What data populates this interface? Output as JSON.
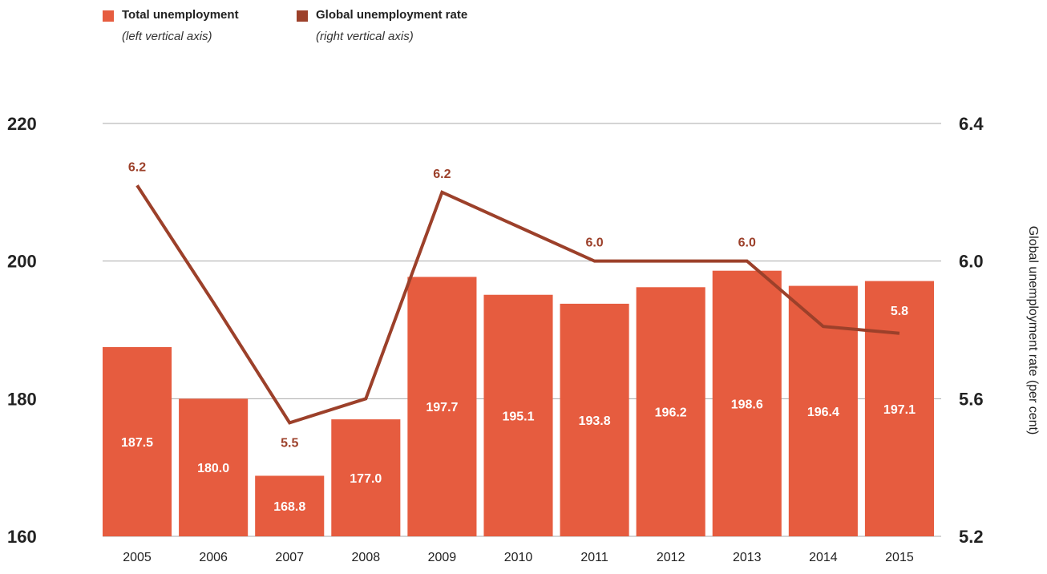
{
  "colors": {
    "bar": "#E65C3F",
    "line": "#9C402A",
    "grid": "#AAAAAA",
    "text": "#222222"
  },
  "legend": {
    "items": [
      {
        "name": "Total unemployment",
        "note": "(left vertical axis)"
      },
      {
        "name": "Global unemployment rate",
        "note": "(right vertical axis)"
      }
    ]
  },
  "chart_data": {
    "type": "bar",
    "categories": [
      "2005",
      "2006",
      "2007",
      "2008",
      "2009",
      "2010",
      "2011",
      "2012",
      "2013",
      "2014",
      "2015"
    ],
    "series": [
      {
        "name": "Total unemployment",
        "type": "bar",
        "axis": "left",
        "values": [
          187.5,
          180.0,
          168.8,
          177.0,
          197.7,
          195.1,
          193.8,
          196.2,
          198.6,
          196.4,
          197.1
        ],
        "labels": [
          "187.5",
          "180.0",
          "168.8",
          "177.0",
          "197.7",
          "195.1",
          "193.8",
          "196.2",
          "198.6",
          "196.4",
          "197.1"
        ]
      },
      {
        "name": "Global unemployment rate",
        "type": "line",
        "axis": "right",
        "values": [
          6.22,
          5.88,
          5.53,
          5.6,
          6.2,
          6.1,
          6.0,
          6.0,
          6.0,
          5.81,
          5.79
        ],
        "labels": [
          "6.2",
          "",
          "5.5",
          "",
          "6.2",
          "",
          "6.0",
          "",
          "6.0",
          "",
          "5.8"
        ]
      }
    ],
    "y_left": {
      "ticks": [
        "160",
        "180",
        "200",
        "220"
      ],
      "range": [
        160,
        220
      ]
    },
    "y_right": {
      "ticks": [
        "5.2",
        "5.6",
        "6.0",
        "6.4"
      ],
      "range": [
        5.2,
        6.4
      ],
      "label": "Global unemployment rate (per cent)"
    },
    "grid": true,
    "legend_position": "top-left"
  }
}
